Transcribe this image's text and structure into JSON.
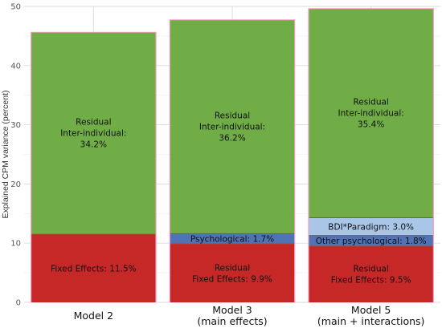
{
  "chart_data": {
    "type": "bar",
    "stacked": true,
    "title": "",
    "ylabel": "Explained CPM variance (percent)",
    "xlabel": "",
    "ylim": [
      0,
      50
    ],
    "yticks": [
      0,
      10,
      20,
      30,
      40,
      50
    ],
    "grid": true,
    "legend": "none",
    "categories": [
      {
        "lines": [
          "Model 2"
        ]
      },
      {
        "lines": [
          "Model 3",
          "(main effects)"
        ]
      },
      {
        "lines": [
          "Model 5",
          "(main + interactions)"
        ]
      }
    ],
    "bars": [
      {
        "segments": [
          {
            "name": "Fixed Effects",
            "value": 11.5,
            "color": "#c62828",
            "label_lines": [
              "Fixed Effects: 11.5%"
            ]
          },
          {
            "name": "Residual Inter-individual",
            "value": 34.2,
            "color": "#70ad47",
            "label_lines": [
              "Residual",
              "Inter-individual:",
              "34.2%"
            ]
          }
        ]
      },
      {
        "segments": [
          {
            "name": "Residual Fixed Effects",
            "value": 9.9,
            "color": "#c62828",
            "label_lines": [
              "Residual",
              "Fixed Effects: 9.9%"
            ]
          },
          {
            "name": "Psychological",
            "value": 1.7,
            "color": "#4f73b4",
            "label_lines": [
              "Psychological: 1.7%"
            ]
          },
          {
            "name": "Residual Inter-individual",
            "value": 36.2,
            "color": "#70ad47",
            "label_lines": [
              "Residual",
              "Inter-individual:",
              "36.2%"
            ]
          }
        ]
      },
      {
        "segments": [
          {
            "name": "Residual Fixed Effects",
            "value": 9.5,
            "color": "#c62828",
            "label_lines": [
              "Residual",
              "Fixed Effects: 9.5%"
            ]
          },
          {
            "name": "Other psychological",
            "value": 1.8,
            "color": "#4f73b4",
            "label_lines": [
              "Other psychological: 1.8%"
            ]
          },
          {
            "name": "BDI*Paradigm",
            "value": 3.0,
            "color": "#a9c6e8",
            "label_lines": [
              "BDI*Paradigm: 3.0%"
            ]
          },
          {
            "name": "Residual Inter-individual",
            "value": 35.4,
            "color": "#70ad47",
            "label_lines": [
              "Residual",
              "Inter-individual:",
              "35.4%"
            ]
          }
        ]
      }
    ]
  }
}
